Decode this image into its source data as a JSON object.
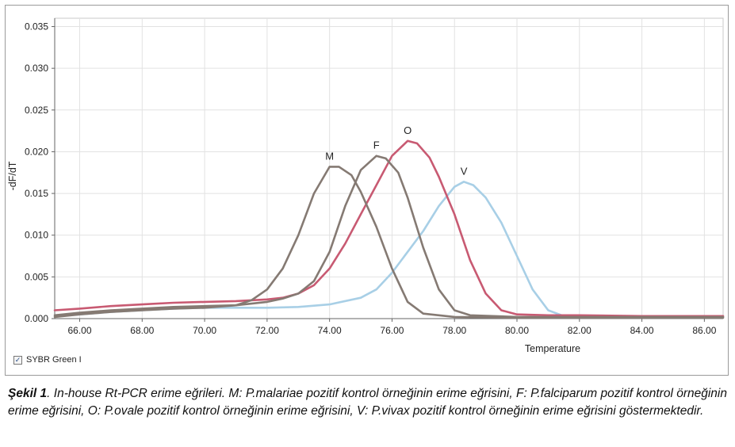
{
  "chart_data": {
    "type": "line",
    "xlabel": "Temperature",
    "ylabel": "-dF/dT",
    "xlim": [
      65.2,
      86.6
    ],
    "ylim": [
      0.0,
      0.036
    ],
    "xticks": [
      "66.00",
      "68.00",
      "70.00",
      "72.00",
      "74.00",
      "76.00",
      "78.00",
      "80.00",
      "82.00",
      "84.00",
      "86.00"
    ],
    "yticks": [
      "0.000",
      "0.005",
      "0.010",
      "0.015",
      "0.020",
      "0.025",
      "0.030",
      "0.035"
    ],
    "grid": true,
    "series": [
      {
        "name": "M",
        "color": "#857a73",
        "points": [
          [
            65.2,
            0.0002
          ],
          [
            66.0,
            0.0005
          ],
          [
            67.0,
            0.0008
          ],
          [
            68.0,
            0.001
          ],
          [
            69.0,
            0.0012
          ],
          [
            70.0,
            0.0013
          ],
          [
            71.0,
            0.0016
          ],
          [
            71.5,
            0.0022
          ],
          [
            72.0,
            0.0035
          ],
          [
            72.5,
            0.006
          ],
          [
            73.0,
            0.01
          ],
          [
            73.5,
            0.015
          ],
          [
            74.0,
            0.0182
          ],
          [
            74.3,
            0.0182
          ],
          [
            74.7,
            0.0172
          ],
          [
            75.0,
            0.0152
          ],
          [
            75.5,
            0.011
          ],
          [
            76.0,
            0.006
          ],
          [
            76.5,
            0.002
          ],
          [
            77.0,
            0.0006
          ],
          [
            78.0,
            0.0002
          ],
          [
            80.0,
            0.0001
          ],
          [
            82.0,
            0.0001
          ],
          [
            84.0,
            0.0001
          ],
          [
            86.6,
            0.0001
          ]
        ]
      },
      {
        "name": "F",
        "color": "#857a73",
        "points": [
          [
            65.2,
            0.0004
          ],
          [
            66.0,
            0.0007
          ],
          [
            67.0,
            0.001
          ],
          [
            68.0,
            0.0012
          ],
          [
            69.0,
            0.0014
          ],
          [
            70.0,
            0.0015
          ],
          [
            71.0,
            0.0016
          ],
          [
            72.0,
            0.002
          ],
          [
            72.5,
            0.0024
          ],
          [
            73.0,
            0.003
          ],
          [
            73.5,
            0.0045
          ],
          [
            74.0,
            0.008
          ],
          [
            74.5,
            0.0135
          ],
          [
            75.0,
            0.0178
          ],
          [
            75.5,
            0.0195
          ],
          [
            75.8,
            0.0192
          ],
          [
            76.2,
            0.0175
          ],
          [
            76.5,
            0.0145
          ],
          [
            77.0,
            0.0085
          ],
          [
            77.5,
            0.0035
          ],
          [
            78.0,
            0.001
          ],
          [
            78.5,
            0.0004
          ],
          [
            80.0,
            0.0002
          ],
          [
            82.0,
            0.0002
          ],
          [
            84.0,
            0.0002
          ],
          [
            86.6,
            0.0002
          ]
        ]
      },
      {
        "name": "O",
        "color": "#c85a72",
        "points": [
          [
            65.2,
            0.001
          ],
          [
            66.0,
            0.0012
          ],
          [
            67.0,
            0.0015
          ],
          [
            68.0,
            0.0017
          ],
          [
            69.0,
            0.0019
          ],
          [
            70.0,
            0.002
          ],
          [
            71.0,
            0.0021
          ],
          [
            72.0,
            0.0023
          ],
          [
            72.5,
            0.0025
          ],
          [
            73.0,
            0.003
          ],
          [
            73.5,
            0.004
          ],
          [
            74.0,
            0.006
          ],
          [
            74.5,
            0.009
          ],
          [
            75.0,
            0.0125
          ],
          [
            75.5,
            0.016
          ],
          [
            76.0,
            0.0195
          ],
          [
            76.5,
            0.0213
          ],
          [
            76.8,
            0.021
          ],
          [
            77.2,
            0.0193
          ],
          [
            77.5,
            0.017
          ],
          [
            78.0,
            0.0125
          ],
          [
            78.5,
            0.007
          ],
          [
            79.0,
            0.003
          ],
          [
            79.5,
            0.001
          ],
          [
            80.0,
            0.0005
          ],
          [
            81.0,
            0.0004
          ],
          [
            82.0,
            0.0004
          ],
          [
            84.0,
            0.0003
          ],
          [
            86.6,
            0.0003
          ]
        ]
      },
      {
        "name": "V",
        "color": "#a8cfe6",
        "points": [
          [
            65.2,
            0.0003
          ],
          [
            66.0,
            0.0005
          ],
          [
            67.0,
            0.0008
          ],
          [
            68.0,
            0.001
          ],
          [
            69.0,
            0.0012
          ],
          [
            70.0,
            0.0013
          ],
          [
            71.0,
            0.0013
          ],
          [
            72.0,
            0.0013
          ],
          [
            73.0,
            0.0014
          ],
          [
            74.0,
            0.0017
          ],
          [
            75.0,
            0.0025
          ],
          [
            75.5,
            0.0035
          ],
          [
            76.0,
            0.0055
          ],
          [
            76.5,
            0.008
          ],
          [
            77.0,
            0.0105
          ],
          [
            77.5,
            0.0135
          ],
          [
            78.0,
            0.0158
          ],
          [
            78.3,
            0.0164
          ],
          [
            78.6,
            0.016
          ],
          [
            79.0,
            0.0145
          ],
          [
            79.5,
            0.0115
          ],
          [
            80.0,
            0.0075
          ],
          [
            80.5,
            0.0035
          ],
          [
            81.0,
            0.001
          ],
          [
            81.5,
            0.0003
          ],
          [
            82.0,
            0.0002
          ],
          [
            84.0,
            0.0002
          ],
          [
            86.6,
            0.0002
          ]
        ]
      }
    ]
  },
  "legend": {
    "label": "SYBR Green I",
    "checked": true
  },
  "caption": {
    "label": "Şekil 1",
    "text": ". In-house Rt-PCR erime eğrileri. M: P.malariae pozitif kontrol örneğinin erime eğrisini, F: P.falciparum pozitif kontrol örneğinin erime eğrisini, O: P.ovale pozitif kontrol örneğinin erime eğrisini, V: P.vivax pozitif kontrol örneğinin erime eğrisini göstermektedir."
  }
}
